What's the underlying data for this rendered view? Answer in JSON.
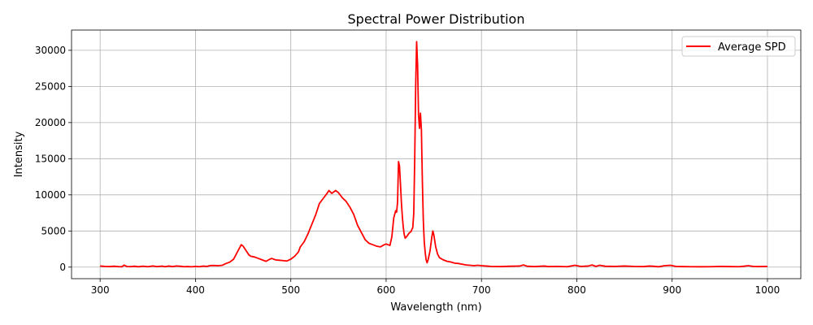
{
  "chart_data": {
    "type": "line",
    "title": "Spectral Power Distribution",
    "xlabel": "Wavelength (nm)",
    "ylabel": "Intensity",
    "xlim": [
      270,
      1035
    ],
    "ylim": [
      -1600,
      32800
    ],
    "x_ticks": [
      300,
      400,
      500,
      600,
      700,
      800,
      900,
      1000
    ],
    "y_ticks": [
      0,
      5000,
      10000,
      15000,
      20000,
      25000,
      30000
    ],
    "grid": true,
    "legend_position": "top-right",
    "series": [
      {
        "name": "Average SPD",
        "color": "#ff0000",
        "points": [
          [
            300,
            150
          ],
          [
            305,
            100
          ],
          [
            310,
            80
          ],
          [
            315,
            120
          ],
          [
            320,
            60
          ],
          [
            323,
            50
          ],
          [
            325,
            280
          ],
          [
            328,
            90
          ],
          [
            332,
            70
          ],
          [
            336,
            120
          ],
          [
            340,
            50
          ],
          [
            345,
            130
          ],
          [
            350,
            60
          ],
          [
            355,
            160
          ],
          [
            360,
            70
          ],
          [
            365,
            140
          ],
          [
            368,
            60
          ],
          [
            372,
            150
          ],
          [
            376,
            80
          ],
          [
            380,
            160
          ],
          [
            384,
            120
          ],
          [
            388,
            60
          ],
          [
            392,
            80
          ],
          [
            396,
            40
          ],
          [
            400,
            100
          ],
          [
            404,
            60
          ],
          [
            408,
            140
          ],
          [
            412,
            100
          ],
          [
            416,
            230
          ],
          [
            420,
            220
          ],
          [
            424,
            200
          ],
          [
            428,
            250
          ],
          [
            432,
            500
          ],
          [
            436,
            700
          ],
          [
            440,
            1100
          ],
          [
            442,
            1600
          ],
          [
            444,
            2100
          ],
          [
            446,
            2600
          ],
          [
            448,
            3100
          ],
          [
            450,
            2900
          ],
          [
            452,
            2500
          ],
          [
            454,
            2100
          ],
          [
            456,
            1700
          ],
          [
            458,
            1500
          ],
          [
            462,
            1400
          ],
          [
            466,
            1200
          ],
          [
            470,
            1000
          ],
          [
            474,
            800
          ],
          [
            478,
            1100
          ],
          [
            480,
            1200
          ],
          [
            484,
            1000
          ],
          [
            488,
            950
          ],
          [
            492,
            900
          ],
          [
            496,
            850
          ],
          [
            500,
            1100
          ],
          [
            504,
            1500
          ],
          [
            508,
            2100
          ],
          [
            510,
            2800
          ],
          [
            514,
            3500
          ],
          [
            518,
            4600
          ],
          [
            522,
            5900
          ],
          [
            526,
            7200
          ],
          [
            530,
            8800
          ],
          [
            534,
            9500
          ],
          [
            538,
            10200
          ],
          [
            540,
            10600
          ],
          [
            543,
            10200
          ],
          [
            547,
            10600
          ],
          [
            550,
            10300
          ],
          [
            554,
            9600
          ],
          [
            558,
            9100
          ],
          [
            562,
            8300
          ],
          [
            566,
            7300
          ],
          [
            570,
            5800
          ],
          [
            574,
            4800
          ],
          [
            578,
            3800
          ],
          [
            582,
            3300
          ],
          [
            586,
            3100
          ],
          [
            590,
            2900
          ],
          [
            594,
            2800
          ],
          [
            598,
            3100
          ],
          [
            600,
            3200
          ],
          [
            604,
            3000
          ],
          [
            606,
            4200
          ],
          [
            608,
            6800
          ],
          [
            610,
            7800
          ],
          [
            611,
            7600
          ],
          [
            612,
            9000
          ],
          [
            613,
            14600
          ],
          [
            614,
            14000
          ],
          [
            615,
            11600
          ],
          [
            616,
            9000
          ],
          [
            617,
            7000
          ],
          [
            618,
            5500
          ],
          [
            619,
            4500
          ],
          [
            620,
            4000
          ],
          [
            622,
            4300
          ],
          [
            624,
            4700
          ],
          [
            626,
            4900
          ],
          [
            628,
            5500
          ],
          [
            629,
            7500
          ],
          [
            630,
            15000
          ],
          [
            631,
            25000
          ],
          [
            632,
            31200
          ],
          [
            633,
            28000
          ],
          [
            634,
            21000
          ],
          [
            635,
            19200
          ],
          [
            636,
            21300
          ],
          [
            637,
            19000
          ],
          [
            638,
            12000
          ],
          [
            639,
            6500
          ],
          [
            640,
            3500
          ],
          [
            641,
            2000
          ],
          [
            642,
            1000
          ],
          [
            643,
            600
          ],
          [
            644,
            1000
          ],
          [
            646,
            2200
          ],
          [
            648,
            4200
          ],
          [
            649,
            5000
          ],
          [
            650,
            4500
          ],
          [
            652,
            2800
          ],
          [
            654,
            1800
          ],
          [
            656,
            1300
          ],
          [
            660,
            1000
          ],
          [
            664,
            800
          ],
          [
            668,
            700
          ],
          [
            672,
            550
          ],
          [
            676,
            500
          ],
          [
            680,
            400
          ],
          [
            684,
            300
          ],
          [
            688,
            250
          ],
          [
            692,
            200
          ],
          [
            696,
            250
          ],
          [
            700,
            200
          ],
          [
            705,
            150
          ],
          [
            710,
            100
          ],
          [
            720,
            80
          ],
          [
            730,
            120
          ],
          [
            740,
            150
          ],
          [
            744,
            300
          ],
          [
            748,
            120
          ],
          [
            756,
            80
          ],
          [
            766,
            150
          ],
          [
            770,
            80
          ],
          [
            780,
            100
          ],
          [
            790,
            60
          ],
          [
            798,
            250
          ],
          [
            804,
            100
          ],
          [
            812,
            150
          ],
          [
            816,
            300
          ],
          [
            820,
            100
          ],
          [
            824,
            250
          ],
          [
            830,
            120
          ],
          [
            840,
            100
          ],
          [
            850,
            150
          ],
          [
            860,
            100
          ],
          [
            870,
            80
          ],
          [
            876,
            150
          ],
          [
            880,
            120
          ],
          [
            886,
            50
          ],
          [
            892,
            200
          ],
          [
            898,
            250
          ],
          [
            904,
            100
          ],
          [
            910,
            80
          ],
          [
            920,
            60
          ],
          [
            930,
            50
          ],
          [
            940,
            60
          ],
          [
            950,
            100
          ],
          [
            960,
            80
          ],
          [
            970,
            60
          ],
          [
            975,
            120
          ],
          [
            980,
            200
          ],
          [
            985,
            100
          ],
          [
            990,
            80
          ],
          [
            1000,
            100
          ]
        ]
      }
    ]
  }
}
